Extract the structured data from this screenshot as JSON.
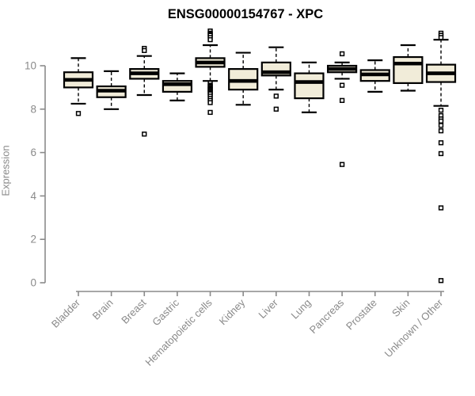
{
  "chart_data": {
    "type": "box",
    "title": "ENSG00000154767 - XPC",
    "ylabel": "Expression",
    "xlabel": "",
    "ylim": [
      0,
      11.7
    ],
    "yticks": [
      0,
      2,
      4,
      6,
      8,
      10
    ],
    "grid": false,
    "legend": "none",
    "categories": [
      "Bladder",
      "Brain",
      "Breast",
      "Gastric",
      "Hematopoietic cells",
      "Kidney",
      "Liver",
      "Lung",
      "Pancreas",
      "Prostate",
      "Skin",
      "Unknown / Other"
    ],
    "series": [
      {
        "name": "Bladder",
        "whisker_low": 8.25,
        "q1": 9.0,
        "median": 9.35,
        "q3": 9.7,
        "whisker_high": 10.35,
        "outliers": [
          7.8
        ]
      },
      {
        "name": "Brain",
        "whisker_low": 8.0,
        "q1": 8.55,
        "median": 8.85,
        "q3": 9.05,
        "whisker_high": 9.75,
        "outliers": []
      },
      {
        "name": "Breast",
        "whisker_low": 8.65,
        "q1": 9.4,
        "median": 9.65,
        "q3": 9.85,
        "whisker_high": 10.45,
        "outliers": [
          10.8,
          10.7,
          6.85
        ]
      },
      {
        "name": "Gastric",
        "whisker_low": 8.4,
        "q1": 8.8,
        "median": 9.15,
        "q3": 9.3,
        "whisker_high": 9.65,
        "outliers": []
      },
      {
        "name": "Hematopoietic cells",
        "whisker_low": 9.3,
        "q1": 9.95,
        "median": 10.15,
        "q3": 10.35,
        "whisker_high": 10.95,
        "outliers": [
          11.6,
          11.5,
          11.45,
          11.4,
          11.3,
          11.2,
          9.2,
          9.1,
          9.05,
          9.0,
          8.95,
          8.9,
          8.85,
          8.8,
          8.75,
          8.7,
          8.6,
          8.5,
          8.4,
          8.3,
          7.85
        ]
      },
      {
        "name": "Kidney",
        "whisker_low": 8.2,
        "q1": 8.9,
        "median": 9.3,
        "q3": 9.85,
        "whisker_high": 10.6,
        "outliers": []
      },
      {
        "name": "Liver",
        "whisker_low": 8.9,
        "q1": 9.55,
        "median": 9.7,
        "q3": 10.15,
        "whisker_high": 10.85,
        "outliers": [
          8.6,
          8.0
        ]
      },
      {
        "name": "Lung",
        "whisker_low": 7.85,
        "q1": 8.5,
        "median": 9.25,
        "q3": 9.65,
        "whisker_high": 10.15,
        "outliers": []
      },
      {
        "name": "Pancreas",
        "whisker_low": 9.4,
        "q1": 9.7,
        "median": 9.85,
        "q3": 10.0,
        "whisker_high": 10.15,
        "outliers": [
          10.55,
          9.1,
          8.4,
          5.45
        ]
      },
      {
        "name": "Prostate",
        "whisker_low": 8.8,
        "q1": 9.3,
        "median": 9.6,
        "q3": 9.8,
        "whisker_high": 10.25,
        "outliers": []
      },
      {
        "name": "Skin",
        "whisker_low": 8.85,
        "q1": 9.2,
        "median": 10.1,
        "q3": 10.4,
        "whisker_high": 10.95,
        "outliers": []
      },
      {
        "name": "Unknown / Other",
        "whisker_low": 8.15,
        "q1": 9.25,
        "median": 9.65,
        "q3": 10.05,
        "whisker_high": 11.2,
        "outliers": [
          11.5,
          11.4,
          11.3,
          7.95,
          7.7,
          7.55,
          7.45,
          7.25,
          7.0,
          6.45,
          5.95,
          3.45,
          0.1
        ]
      }
    ],
    "colors": {
      "box_fill": "#F1ECD9",
      "box_stroke": "#000000",
      "median": "#000000",
      "axis": "#8a8a8a",
      "tick_text": "#8a8a8a",
      "title_text": "#000000",
      "outlier_fill": "#ffffff",
      "background": "#ffffff"
    }
  }
}
